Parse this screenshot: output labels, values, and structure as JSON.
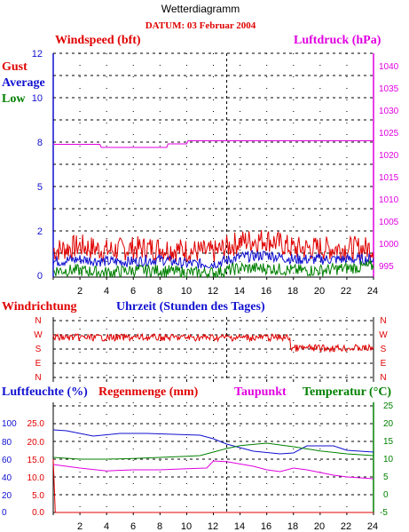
{
  "header": {
    "title": "Wetterdiagramm",
    "date_label": "DATUM: 03 Februar 2004"
  },
  "colors": {
    "red": "#e00000",
    "blue": "#1010d0",
    "green": "#008000",
    "magenta": "#e000e0",
    "axis": "#000000"
  },
  "panel_wind": {
    "title_left": "Windspeed (bft)",
    "title_right": "Luftdruck (hPa)",
    "legend": [
      "Gust",
      "Average",
      "Low"
    ],
    "ylabels": [
      "12",
      "10",
      "8",
      "5",
      "2",
      "0"
    ],
    "ylabels_right": [
      "1040",
      "1035",
      "1030",
      "1025",
      "1020",
      "1015",
      "1010",
      "1005",
      "1000",
      "995"
    ],
    "xlabel": "Uhrzeit (Stunden des Tages)"
  },
  "panel_dir": {
    "title": "Windrichtung",
    "labels": [
      "N",
      "W",
      "S",
      "E",
      "N"
    ]
  },
  "panel_humid": {
    "title_humidity": "Luftfeuchte (%)",
    "title_rain": "Regenmenge (mm)",
    "title_dew": "Taupunkt",
    "title_temp": "Temperatur (°C)",
    "ylabels_humidity": [
      "100",
      "80",
      "60",
      "40",
      "20",
      "0"
    ],
    "ylabels_rain": [
      "25.0",
      "20.0",
      "15.0",
      "10.0",
      "5.0",
      "0.0"
    ],
    "ylabels_temp": [
      "25",
      "20",
      "15",
      "10",
      "5",
      "0",
      "-5"
    ]
  },
  "xaxis": {
    "ticks": [
      "2",
      "4",
      "6",
      "8",
      "10",
      "12",
      "14",
      "16",
      "18",
      "20",
      "22",
      "24"
    ]
  },
  "chart_data": [
    {
      "type": "line",
      "x_range": [
        0,
        24
      ],
      "series": [
        {
          "name": "Gust",
          "color": "#e00000",
          "x": [
            0,
            2,
            4,
            6,
            8,
            10,
            12,
            14,
            16,
            18,
            20,
            22,
            24
          ],
          "values": [
            1.2,
            1.4,
            1.2,
            1.3,
            1.3,
            1.2,
            1.1,
            1.6,
            1.7,
            1.3,
            1.3,
            1.3,
            1.3
          ]
        },
        {
          "name": "Average",
          "color": "#1010d0",
          "x": [
            0,
            2,
            4,
            6,
            8,
            10,
            12,
            14,
            16,
            18,
            20,
            22,
            24
          ],
          "values": [
            0.7,
            0.8,
            0.7,
            0.7,
            0.8,
            0.6,
            0.6,
            0.9,
            1.0,
            0.8,
            0.8,
            0.8,
            0.8
          ]
        },
        {
          "name": "Low",
          "color": "#008000",
          "x": [
            0,
            2,
            4,
            6,
            8,
            10,
            12,
            14,
            16,
            18,
            20,
            22,
            24
          ],
          "values": [
            0.3,
            0.3,
            0.2,
            0.3,
            0.3,
            0.2,
            0.2,
            0.4,
            0.4,
            0.3,
            0.3,
            0.4,
            0.5
          ]
        },
        {
          "name": "Luftdruck",
          "color": "#e000e0",
          "x": [
            0,
            3.5,
            3.6,
            8.5,
            8.6,
            10,
            10.1,
            24
          ],
          "values": [
            1022.5,
            1022.5,
            1021.8,
            1021.8,
            1022.6,
            1022.6,
            1023.3,
            1023.3
          ]
        }
      ]
    },
    {
      "type": "line",
      "x_range": [
        0,
        24
      ],
      "series": [
        {
          "name": "Windrichtung",
          "color": "#e00000",
          "x": [
            0,
            2,
            4,
            6,
            8,
            10,
            12,
            14,
            16,
            18,
            20,
            22,
            24
          ],
          "values": [
            "W",
            "W",
            "W",
            "W",
            "W",
            "W",
            "W",
            "W",
            "W",
            "S",
            "S",
            "S",
            "S"
          ]
        }
      ]
    },
    {
      "type": "line",
      "x_range": [
        0,
        24
      ],
      "series": [
        {
          "name": "Luftfeuchte",
          "color": "#1010d0",
          "x": [
            0,
            1,
            3,
            5,
            7,
            9,
            11,
            12,
            13,
            15,
            17,
            18,
            19,
            21,
            22,
            24
          ],
          "values": [
            93,
            92,
            86,
            89,
            89,
            88,
            87,
            83,
            77,
            69,
            66,
            67,
            75,
            75,
            70,
            68
          ]
        },
        {
          "name": "Regenmenge",
          "color": "#e00000",
          "x": [
            0,
            0.15,
            0.2,
            24
          ],
          "values": [
            15.0,
            0.0,
            0.0,
            0.0
          ]
        },
        {
          "name": "Taupunkt",
          "color": "#e000e0",
          "x": [
            0,
            2,
            4,
            6,
            8,
            10,
            11.5,
            12,
            13,
            15,
            16,
            17,
            18,
            19,
            21,
            22,
            24
          ],
          "values": [
            8.5,
            7.5,
            6.7,
            7.0,
            7.0,
            7.3,
            7.5,
            9.5,
            9.3,
            8.0,
            7.0,
            6.5,
            7.5,
            7.0,
            5.5,
            5.0,
            4.5
          ]
        },
        {
          "name": "Temperatur",
          "color": "#008000",
          "x": [
            0,
            2,
            4,
            6,
            8,
            10,
            11,
            12,
            13,
            14,
            16,
            18,
            20,
            22,
            24
          ],
          "values": [
            10.5,
            10.0,
            10.0,
            10.2,
            10.5,
            10.8,
            11.0,
            12.0,
            13.0,
            13.8,
            14.5,
            13.5,
            12.3,
            11.5,
            11.0
          ]
        }
      ]
    }
  ]
}
